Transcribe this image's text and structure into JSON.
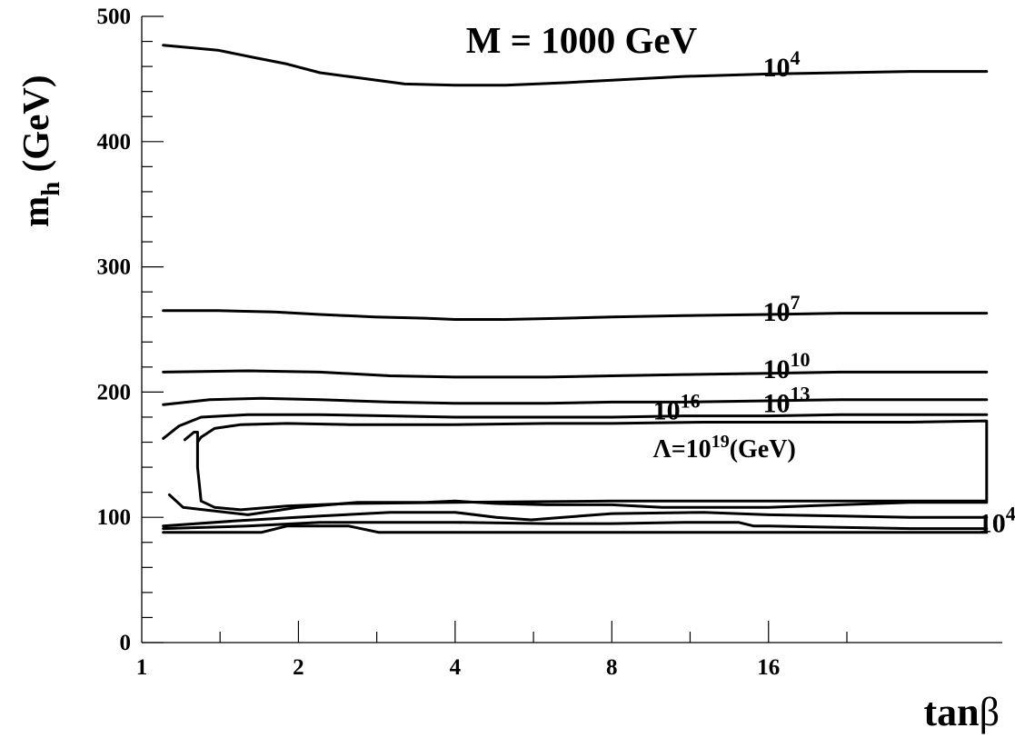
{
  "chart_data": {
    "type": "line",
    "title": "M = 1000 GeV",
    "ylabel": {
      "main": "m",
      "sub": "h",
      "unit": " (GeV)"
    },
    "xlabel": {
      "main": "tan",
      "symbol": "β"
    },
    "xscale": "log2",
    "xlim": [
      1,
      45
    ],
    "ylim": [
      0,
      500
    ],
    "xticks_major": [
      1,
      2,
      4,
      8,
      16
    ],
    "xtick_labels": [
      "1",
      "2",
      "4",
      "8",
      "16"
    ],
    "yticks_major": [
      0,
      100,
      200,
      300,
      400,
      500
    ],
    "ytick_labels": [
      "0",
      "100",
      "200",
      "300",
      "400",
      "500"
    ],
    "grid": false,
    "curve_labels": [
      {
        "id": "upper-1e4",
        "base": "10",
        "exp": "4",
        "x": 15.6,
        "y": 452
      },
      {
        "id": "upper-1e7",
        "base": "10",
        "exp": "7",
        "x": 15.6,
        "y": 257
      },
      {
        "id": "upper-1e10",
        "base": "10",
        "exp": "10",
        "x": 15.6,
        "y": 211
      },
      {
        "id": "upper-1e13",
        "base": "10",
        "exp": "13",
        "x": 15.6,
        "y": 184
      },
      {
        "id": "upper-1e16",
        "base": "10",
        "exp": "16",
        "x": 9.6,
        "y": 178
      },
      {
        "id": "lambda-1e19",
        "prefix": "Λ=10",
        "exp": "19",
        "suffix": "(GeV)",
        "x": 9.6,
        "y": 148
      },
      {
        "id": "lower-1e4",
        "base": "10",
        "exp": "4",
        "x": 40.5,
        "y": 88
      }
    ],
    "series": [
      {
        "id": "upper-1e4",
        "x": [
          1.1,
          1.4,
          1.65,
          1.9,
          2.2,
          2.6,
          3.2,
          4,
          5,
          6.5,
          8,
          11,
          16,
          22,
          30,
          42
        ],
        "y": [
          477,
          473,
          467,
          462,
          455,
          451,
          446,
          445,
          445,
          447,
          449,
          452,
          454,
          455,
          456,
          456
        ]
      },
      {
        "id": "upper-1e7",
        "x": [
          1.1,
          1.4,
          1.8,
          2.2,
          2.8,
          3.5,
          4,
          5,
          6.5,
          8,
          11,
          16,
          22,
          30,
          42
        ],
        "y": [
          265,
          265,
          264,
          262,
          260,
          259,
          258,
          258,
          259,
          260,
          261,
          262,
          263,
          263,
          263
        ]
      },
      {
        "id": "upper-1e10",
        "x": [
          1.1,
          1.6,
          2.2,
          3,
          4,
          6,
          8,
          11,
          16,
          22,
          30,
          42
        ],
        "y": [
          216,
          217,
          216,
          213,
          212,
          212,
          213,
          214,
          215,
          216,
          216,
          216
        ]
      },
      {
        "id": "upper-1e13",
        "x": [
          1.1,
          1.35,
          1.7,
          2.2,
          3,
          4,
          6,
          8,
          11,
          16,
          22,
          30,
          42
        ],
        "y": [
          190,
          194,
          195,
          194,
          192,
          191,
          191,
          192,
          192,
          193,
          194,
          194,
          194
        ]
      },
      {
        "id": "upper-1e16",
        "x": [
          1.1,
          1.18,
          1.3,
          1.6,
          2.2,
          3,
          4,
          6,
          8,
          11,
          16,
          22,
          30,
          42
        ],
        "y": [
          163,
          173,
          180,
          182,
          182,
          181,
          180,
          180,
          180,
          181,
          181,
          182,
          182,
          182
        ]
      },
      {
        "id": "lambda-1e19",
        "x": [
          1.21,
          1.26,
          1.28,
          1.28,
          1.28,
          1.3,
          1.38,
          1.55,
          1.9,
          2.5,
          4,
          8,
          16,
          30,
          42,
          42,
          30,
          16,
          12,
          8,
          6,
          4,
          2.5,
          1.9,
          1.55,
          1.38,
          1.3,
          1.28
        ],
        "y": [
          162,
          168,
          168,
          160,
          140,
          113,
          108,
          106,
          109,
          111,
          112,
          113,
          113,
          113,
          113,
          177,
          176,
          176,
          176,
          175,
          175,
          174,
          174,
          175,
          174,
          171,
          164,
          160
        ]
      },
      {
        "id": "lower-1e13",
        "x": [
          1.13,
          1.2,
          1.6,
          2,
          2.6,
          3.5,
          4,
          4.8,
          6,
          8,
          10,
          16,
          22,
          30,
          42
        ],
        "y": [
          118,
          108,
          102,
          108,
          112,
          112,
          113,
          111,
          110,
          110,
          108,
          108,
          110,
          112,
          112
        ]
      },
      {
        "id": "lower-1e10",
        "x": [
          1.1,
          1.5,
          2.2,
          3,
          4,
          4.8,
          5.6,
          6,
          8,
          12,
          16,
          22,
          30,
          42
        ],
        "y": [
          93,
          97,
          101,
          104,
          104,
          100,
          98,
          99,
          103,
          104,
          102,
          101,
          100,
          100
        ]
      },
      {
        "id": "lower-1e7",
        "x": [
          1.1,
          1.6,
          2.2,
          3,
          4,
          6,
          8,
          11,
          14,
          15,
          16,
          22,
          30,
          42
        ],
        "y": [
          91,
          93,
          96,
          96,
          96,
          95,
          95,
          96,
          96,
          93,
          93,
          92,
          91,
          91
        ]
      },
      {
        "id": "lower-1e4",
        "x": [
          1.1,
          1.7,
          1.9,
          2.5,
          2.85,
          3.5,
          5,
          8,
          16,
          30,
          42
        ],
        "y": [
          88,
          88,
          93,
          93,
          88,
          88,
          88,
          88,
          88,
          88,
          88
        ]
      }
    ]
  }
}
